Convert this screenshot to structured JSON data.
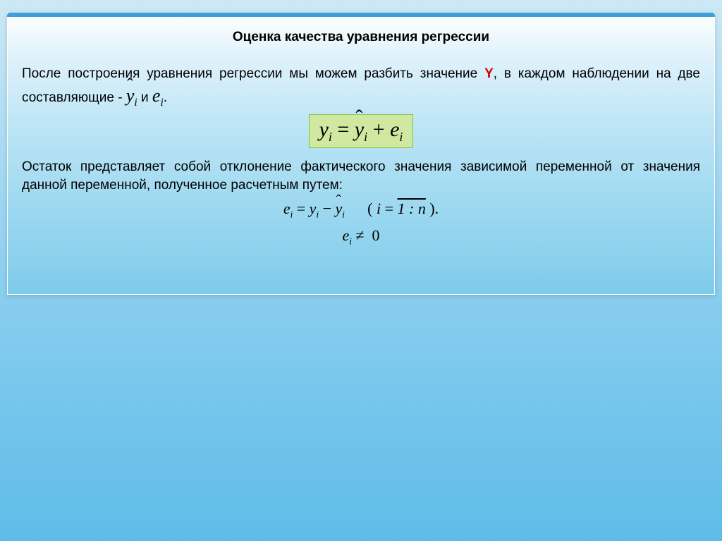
{
  "title": "Оценка качества уравнения регрессии",
  "para1_a": "После построения уравнения регрессии мы можем разбить значение ",
  "para1_y": "Y",
  "para1_b": ", в каждом наблюдении на две составляющие -  ",
  "para1_and": "   и  ",
  "para1_dot": ".",
  "para2": "Остаток представляет собой отклонение фактического значения зависимой переменной от значения данной переменной, полученное расчетным путем:",
  "formula_box_y": "y",
  "formula_box_eq": " = ",
  "formula_box_plus": " + ",
  "formula_box_e": "e",
  "formula_sub_i": "i",
  "residual_e": "e",
  "residual_eq": " = ",
  "residual_y": "y",
  "residual_minus": " − ",
  "range_open": "( ",
  "range_i": "i",
  "range_eq": " = ",
  "range_val": "1 : n",
  "range_close": " ).",
  "neq_e": "e",
  "neq_sym": " ≠ ",
  "neq_zero": "0",
  "colors": {
    "highlight_box_bg": "#d0e8a0",
    "highlight_box_border": "#8bbf3f",
    "y_text": "#d00000",
    "gradient_top": "#cce8f5",
    "gradient_bottom": "#5fbce8"
  }
}
